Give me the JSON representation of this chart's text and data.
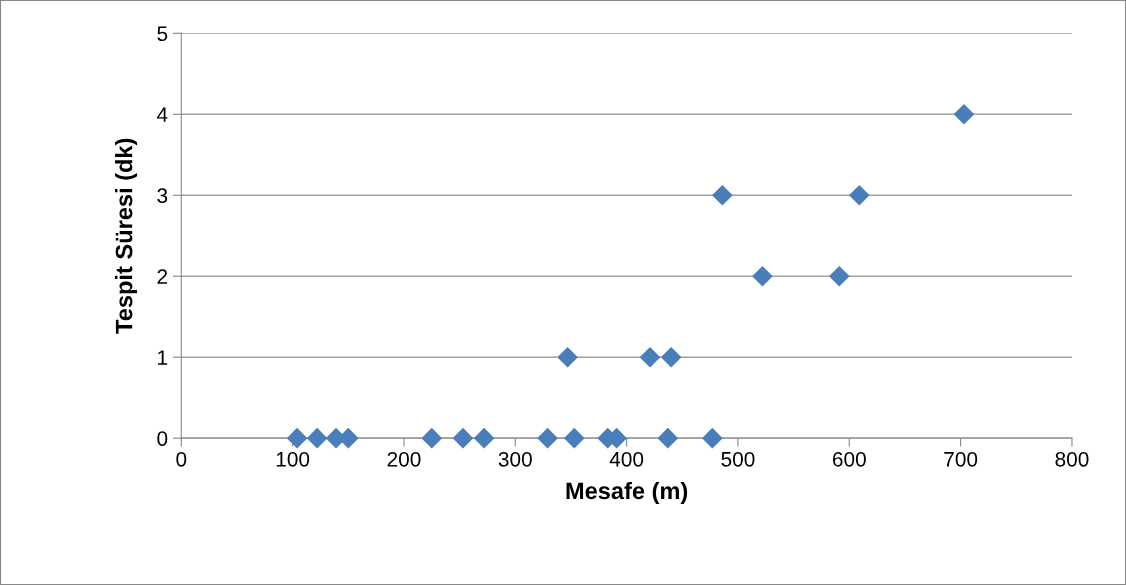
{
  "chart_data": {
    "type": "scatter",
    "xlabel": "Mesafe (m)",
    "ylabel": "Tespit Süresi (dk)",
    "series": [
      {
        "color": "#4a7ebb",
        "x": [
          104,
          122,
          139,
          150,
          225,
          253,
          272,
          329,
          353,
          383,
          391,
          437,
          477,
          347,
          421,
          440,
          522,
          591,
          486,
          609,
          703
        ],
        "values": [
          0,
          0,
          0,
          0,
          0,
          0,
          0,
          0,
          0,
          0,
          0,
          0,
          0,
          1,
          1,
          1,
          2,
          2,
          3,
          3,
          4
        ]
      }
    ],
    "xlim": [
      0,
      800
    ],
    "xticks": [
      0,
      100,
      200,
      300,
      400,
      500,
      600,
      700,
      800
    ],
    "ylim": [
      0,
      5
    ],
    "yticks": [
      0,
      1,
      2,
      3,
      4,
      5
    ],
    "grid": "y",
    "marker": "diamond",
    "legend": false
  }
}
